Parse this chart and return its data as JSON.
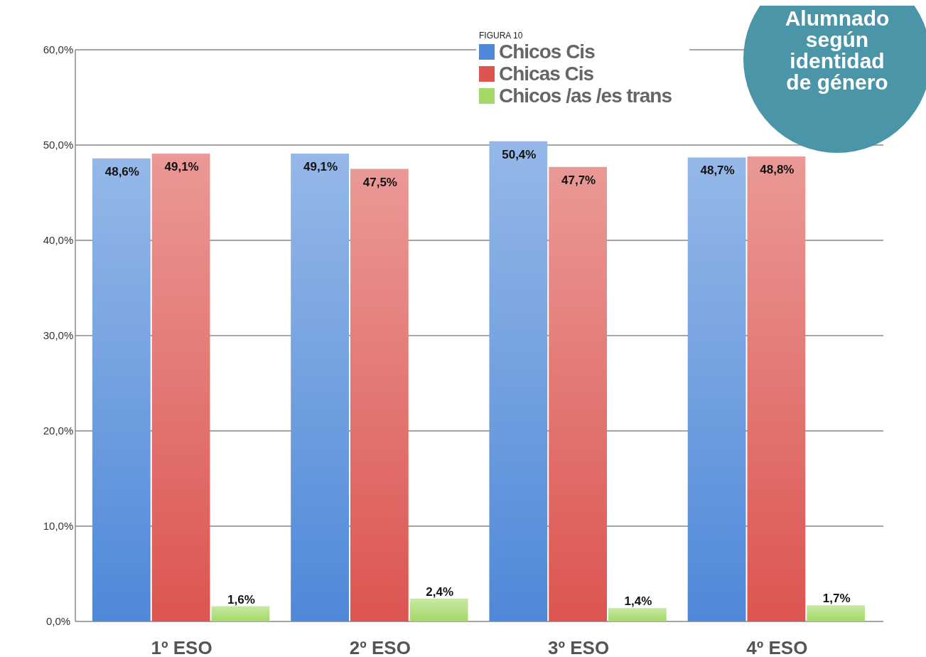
{
  "chart_data": {
    "type": "bar",
    "title": "Alumnado según identidad de género",
    "subtitle": "FIGURA 10",
    "categories": [
      "1º ESO",
      "2º ESO",
      "3º ESO",
      "4º ESO"
    ],
    "series": [
      {
        "name": "Chicos Cis",
        "color": "#4f88d8",
        "values": [
          48.6,
          49.1,
          50.4,
          48.7
        ],
        "value_labels": [
          "48,6%",
          "49,1%",
          "50,4%",
          "48,7%"
        ]
      },
      {
        "name": "Chicas Cis",
        "color": "#dc5550",
        "values": [
          49.1,
          47.5,
          47.7,
          48.8
        ],
        "value_labels": [
          "49,1%",
          "47,5%",
          "47,7%",
          "48,8%"
        ]
      },
      {
        "name": "Chicos /as /es trans",
        "color": "#a4d867",
        "values": [
          1.6,
          2.4,
          1.4,
          1.7
        ],
        "value_labels": [
          "1,6%",
          "2,4%",
          "1,4%",
          "1,7%"
        ]
      }
    ],
    "ylim": [
      0,
      60
    ],
    "yticks": [
      {
        "value": 0,
        "label": "0,0%"
      },
      {
        "value": 10,
        "label": "10,0%"
      },
      {
        "value": 20,
        "label": "20,0%"
      },
      {
        "value": 30,
        "label": "30,0%"
      },
      {
        "value": 40,
        "label": "40,0%"
      },
      {
        "value": 50,
        "label": "50,0%"
      },
      {
        "value": 60,
        "label": "60,0%"
      }
    ],
    "grid": "y",
    "legend": "top right"
  }
}
